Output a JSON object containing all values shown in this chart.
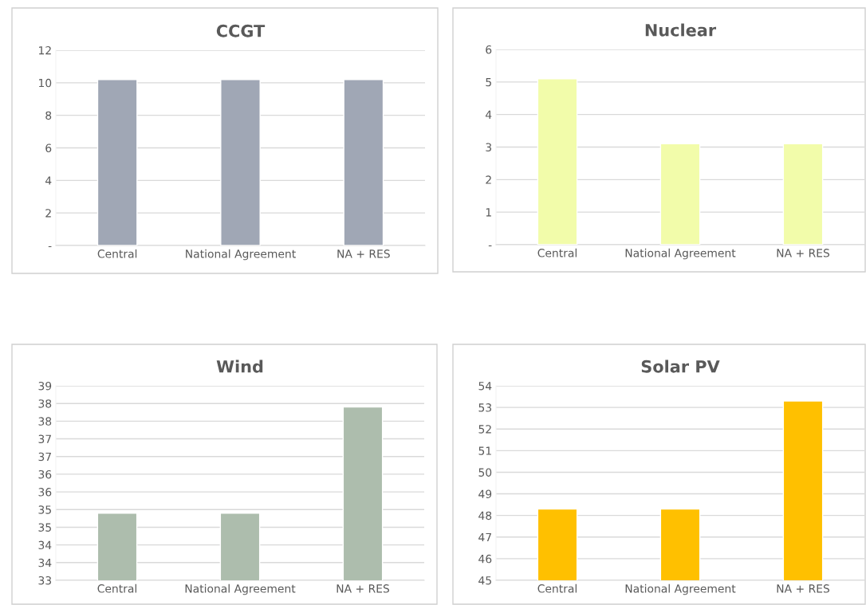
{
  "chart_data": [
    {
      "type": "bar",
      "title": "CCGT",
      "categories": [
        "Central",
        "National Agreement",
        "NA + RES"
      ],
      "values": [
        10.2,
        10.2,
        10.2
      ],
      "color": "#a0a7b5",
      "ylim": [
        0,
        12
      ],
      "yticks": [
        {
          "value": 0,
          "label": "-"
        },
        2,
        4,
        6,
        8,
        10,
        12
      ],
      "grid": "y",
      "legend": false
    },
    {
      "type": "bar",
      "title": "Nuclear",
      "categories": [
        "Central",
        "National Agreement",
        "NA + RES"
      ],
      "values": [
        5.1,
        3.1,
        3.1
      ],
      "color": "#f2fcaa",
      "ylim": [
        0,
        6
      ],
      "yticks": [
        {
          "value": 0,
          "label": "-"
        },
        1,
        2,
        3,
        4,
        5,
        6
      ],
      "grid": "y",
      "legend": false
    },
    {
      "type": "bar",
      "title": "Wind",
      "categories": [
        "Central",
        "National Agreement",
        "NA + RES"
      ],
      "values": [
        34.9,
        34.9,
        37.9
      ],
      "color": "#adbdad",
      "ylim": [
        33,
        38.5
      ],
      "yticks": [
        33,
        {
          "value": 33.5,
          "label": "34"
        },
        34,
        {
          "value": 34.5,
          "label": "35"
        },
        35,
        {
          "value": 35.5,
          "label": "36"
        },
        36,
        {
          "value": 36.5,
          "label": "37"
        },
        37,
        {
          "value": 37.5,
          "label": "38"
        },
        38,
        {
          "value": 38.5,
          "label": "39"
        }
      ],
      "grid": "y",
      "legend": false
    },
    {
      "type": "bar",
      "title": "Solar PV",
      "categories": [
        "Central",
        "National Agreement",
        "NA + RES"
      ],
      "values": [
        48.3,
        48.3,
        53.3
      ],
      "color": "#ffc000",
      "ylim": [
        45,
        54
      ],
      "yticks": [
        45,
        46,
        47,
        48,
        49,
        50,
        51,
        52,
        53,
        54
      ],
      "grid": "y",
      "legend": false
    }
  ]
}
